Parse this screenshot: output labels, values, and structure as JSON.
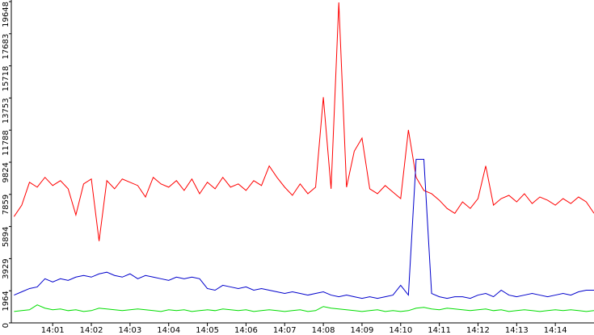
{
  "chart_data": {
    "type": "line",
    "x": [
      0,
      0.2,
      0.4,
      0.6,
      0.8,
      1,
      1.2,
      1.4,
      1.6,
      1.8,
      2,
      2.2,
      2.4,
      2.6,
      2.8,
      3,
      3.2,
      3.4,
      3.6,
      3.8,
      4,
      4.2,
      4.4,
      4.6,
      4.8,
      5,
      5.2,
      5.4,
      5.6,
      5.8,
      6,
      6.2,
      6.4,
      6.6,
      6.8,
      7,
      7.2,
      7.4,
      7.6,
      7.8,
      8,
      8.2,
      8.4,
      8.6,
      8.8,
      9,
      9.2,
      9.4,
      9.6,
      9.8,
      10,
      10.2,
      10.4,
      10.6,
      10.8,
      11,
      11.2,
      11.4,
      11.6,
      11.8,
      12,
      12.2,
      12.4,
      12.6,
      12.8,
      13,
      13.2,
      13.4,
      13.6,
      13.8,
      14,
      14.2,
      14.4,
      14.6,
      14.8,
      15
    ],
    "series": [
      {
        "color": "#ff0000",
        "values": [
          6500,
          7200,
          8600,
          8300,
          8900,
          8400,
          8700,
          8200,
          6600,
          8500,
          8800,
          5000,
          8700,
          8200,
          8800,
          8600,
          8400,
          7700,
          8900,
          8500,
          8300,
          8700,
          8100,
          8800,
          7900,
          8600,
          8200,
          8900,
          8300,
          8500,
          8100,
          8700,
          8400,
          9600,
          8900,
          8300,
          7800,
          8500,
          7900,
          8300,
          13800,
          8200,
          19600,
          8300,
          10500,
          11300,
          8200,
          7900,
          8400,
          8000,
          7600,
          11800,
          8900,
          8100,
          7900,
          7500,
          7000,
          6700,
          7400,
          7000,
          7600,
          9600,
          7200,
          7600,
          7800,
          7400,
          7900,
          7300,
          7700,
          7500,
          7200,
          7600,
          7300,
          7700,
          7400,
          6700
        ]
      },
      {
        "color": "#0000cc",
        "values": [
          1700,
          1900,
          2100,
          2200,
          2700,
          2500,
          2700,
          2600,
          2800,
          2900,
          2800,
          3000,
          3100,
          2900,
          2800,
          3000,
          2700,
          2900,
          2800,
          2700,
          2600,
          2800,
          2700,
          2800,
          2700,
          2100,
          2000,
          2300,
          2200,
          2100,
          2200,
          2000,
          2100,
          2000,
          1900,
          1800,
          1900,
          1800,
          1700,
          1800,
          1900,
          1700,
          1600,
          1700,
          1600,
          1500,
          1600,
          1500,
          1600,
          1700,
          2300,
          1700,
          10000,
          10000,
          1800,
          1600,
          1500,
          1600,
          1600,
          1500,
          1700,
          1800,
          1600,
          2000,
          1700,
          1600,
          1700,
          1800,
          1700,
          1600,
          1700,
          1800,
          1700,
          1900,
          2000,
          2000
        ]
      },
      {
        "color": "#00dd00",
        "values": [
          700,
          750,
          800,
          1100,
          900,
          800,
          850,
          750,
          800,
          700,
          750,
          900,
          850,
          800,
          750,
          800,
          850,
          800,
          750,
          700,
          800,
          750,
          800,
          700,
          750,
          800,
          750,
          850,
          800,
          750,
          800,
          700,
          750,
          800,
          750,
          700,
          750,
          800,
          700,
          750,
          1000,
          900,
          850,
          800,
          750,
          700,
          750,
          800,
          700,
          750,
          700,
          750,
          900,
          950,
          850,
          800,
          900,
          850,
          800,
          750,
          800,
          850,
          750,
          800,
          700,
          750,
          800,
          750,
          700,
          750,
          800,
          750,
          800,
          750,
          700,
          750
        ]
      }
    ],
    "xlim": [
      -0.07,
      15
    ],
    "xticks": [
      {
        "value": 1,
        "label": "14:01"
      },
      {
        "value": 2,
        "label": "14:02"
      },
      {
        "value": 3,
        "label": "14:03"
      },
      {
        "value": 4,
        "label": "14:04"
      },
      {
        "value": 5,
        "label": "14:05"
      },
      {
        "value": 6,
        "label": "14:06"
      },
      {
        "value": 7,
        "label": "14:07"
      },
      {
        "value": 8,
        "label": "14:08"
      },
      {
        "value": 9,
        "label": "14:09"
      },
      {
        "value": 10,
        "label": "14:10"
      },
      {
        "value": 11,
        "label": "14:11"
      },
      {
        "value": 12,
        "label": "14:12"
      },
      {
        "value": 13,
        "label": "14:13"
      },
      {
        "value": 14,
        "label": "14:14"
      }
    ],
    "ylim": [
      0,
      19648
    ],
    "yticks": [
      0,
      1964,
      3929,
      5894,
      7859,
      9824,
      11788,
      13753,
      15718,
      17683,
      19648
    ]
  }
}
